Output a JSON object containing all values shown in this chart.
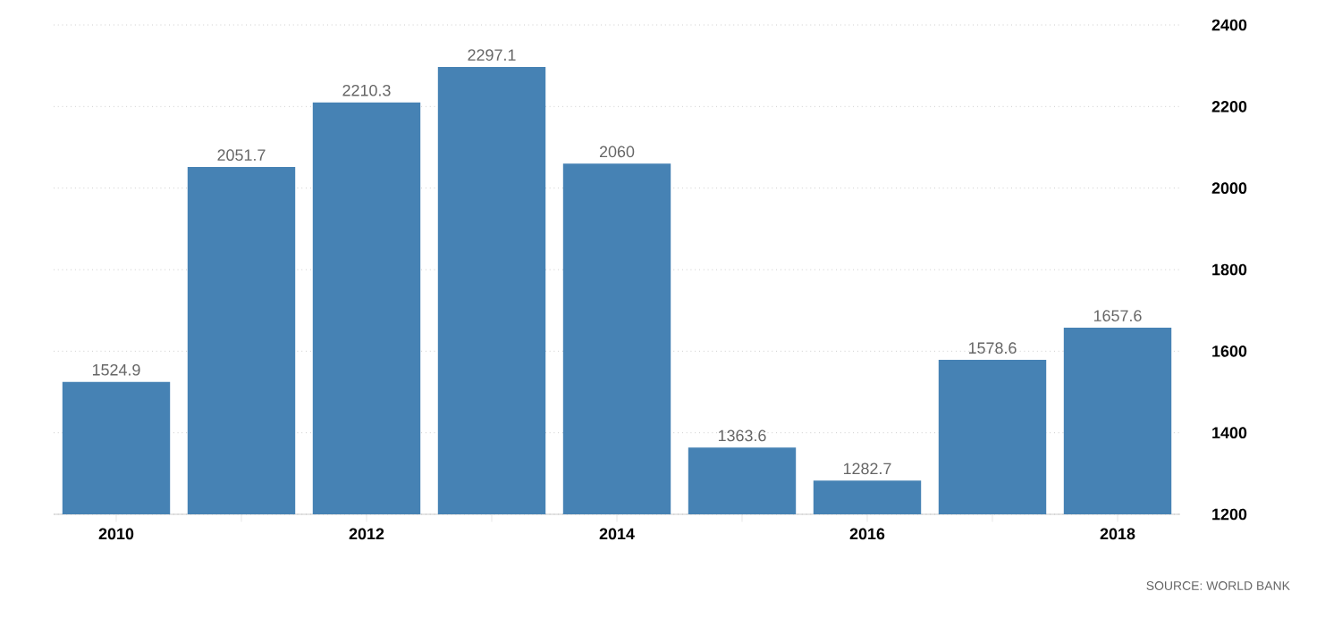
{
  "chart_data": {
    "type": "bar",
    "categories": [
      "2010",
      null,
      "2012",
      null,
      "2014",
      null,
      "2016",
      null,
      "2018"
    ],
    "values": [
      1524.9,
      2051.7,
      2210.3,
      2297.1,
      2060,
      1363.6,
      1282.7,
      1578.6,
      1657.6
    ],
    "color": "#4682b4",
    "ylim": [
      1200,
      2400
    ],
    "yticks": [
      1200,
      1400,
      1600,
      1800,
      2000,
      2200,
      2400
    ],
    "grid": "y",
    "data_labels": true,
    "annotations": [
      "SOURCE: WORLD BANK"
    ]
  }
}
